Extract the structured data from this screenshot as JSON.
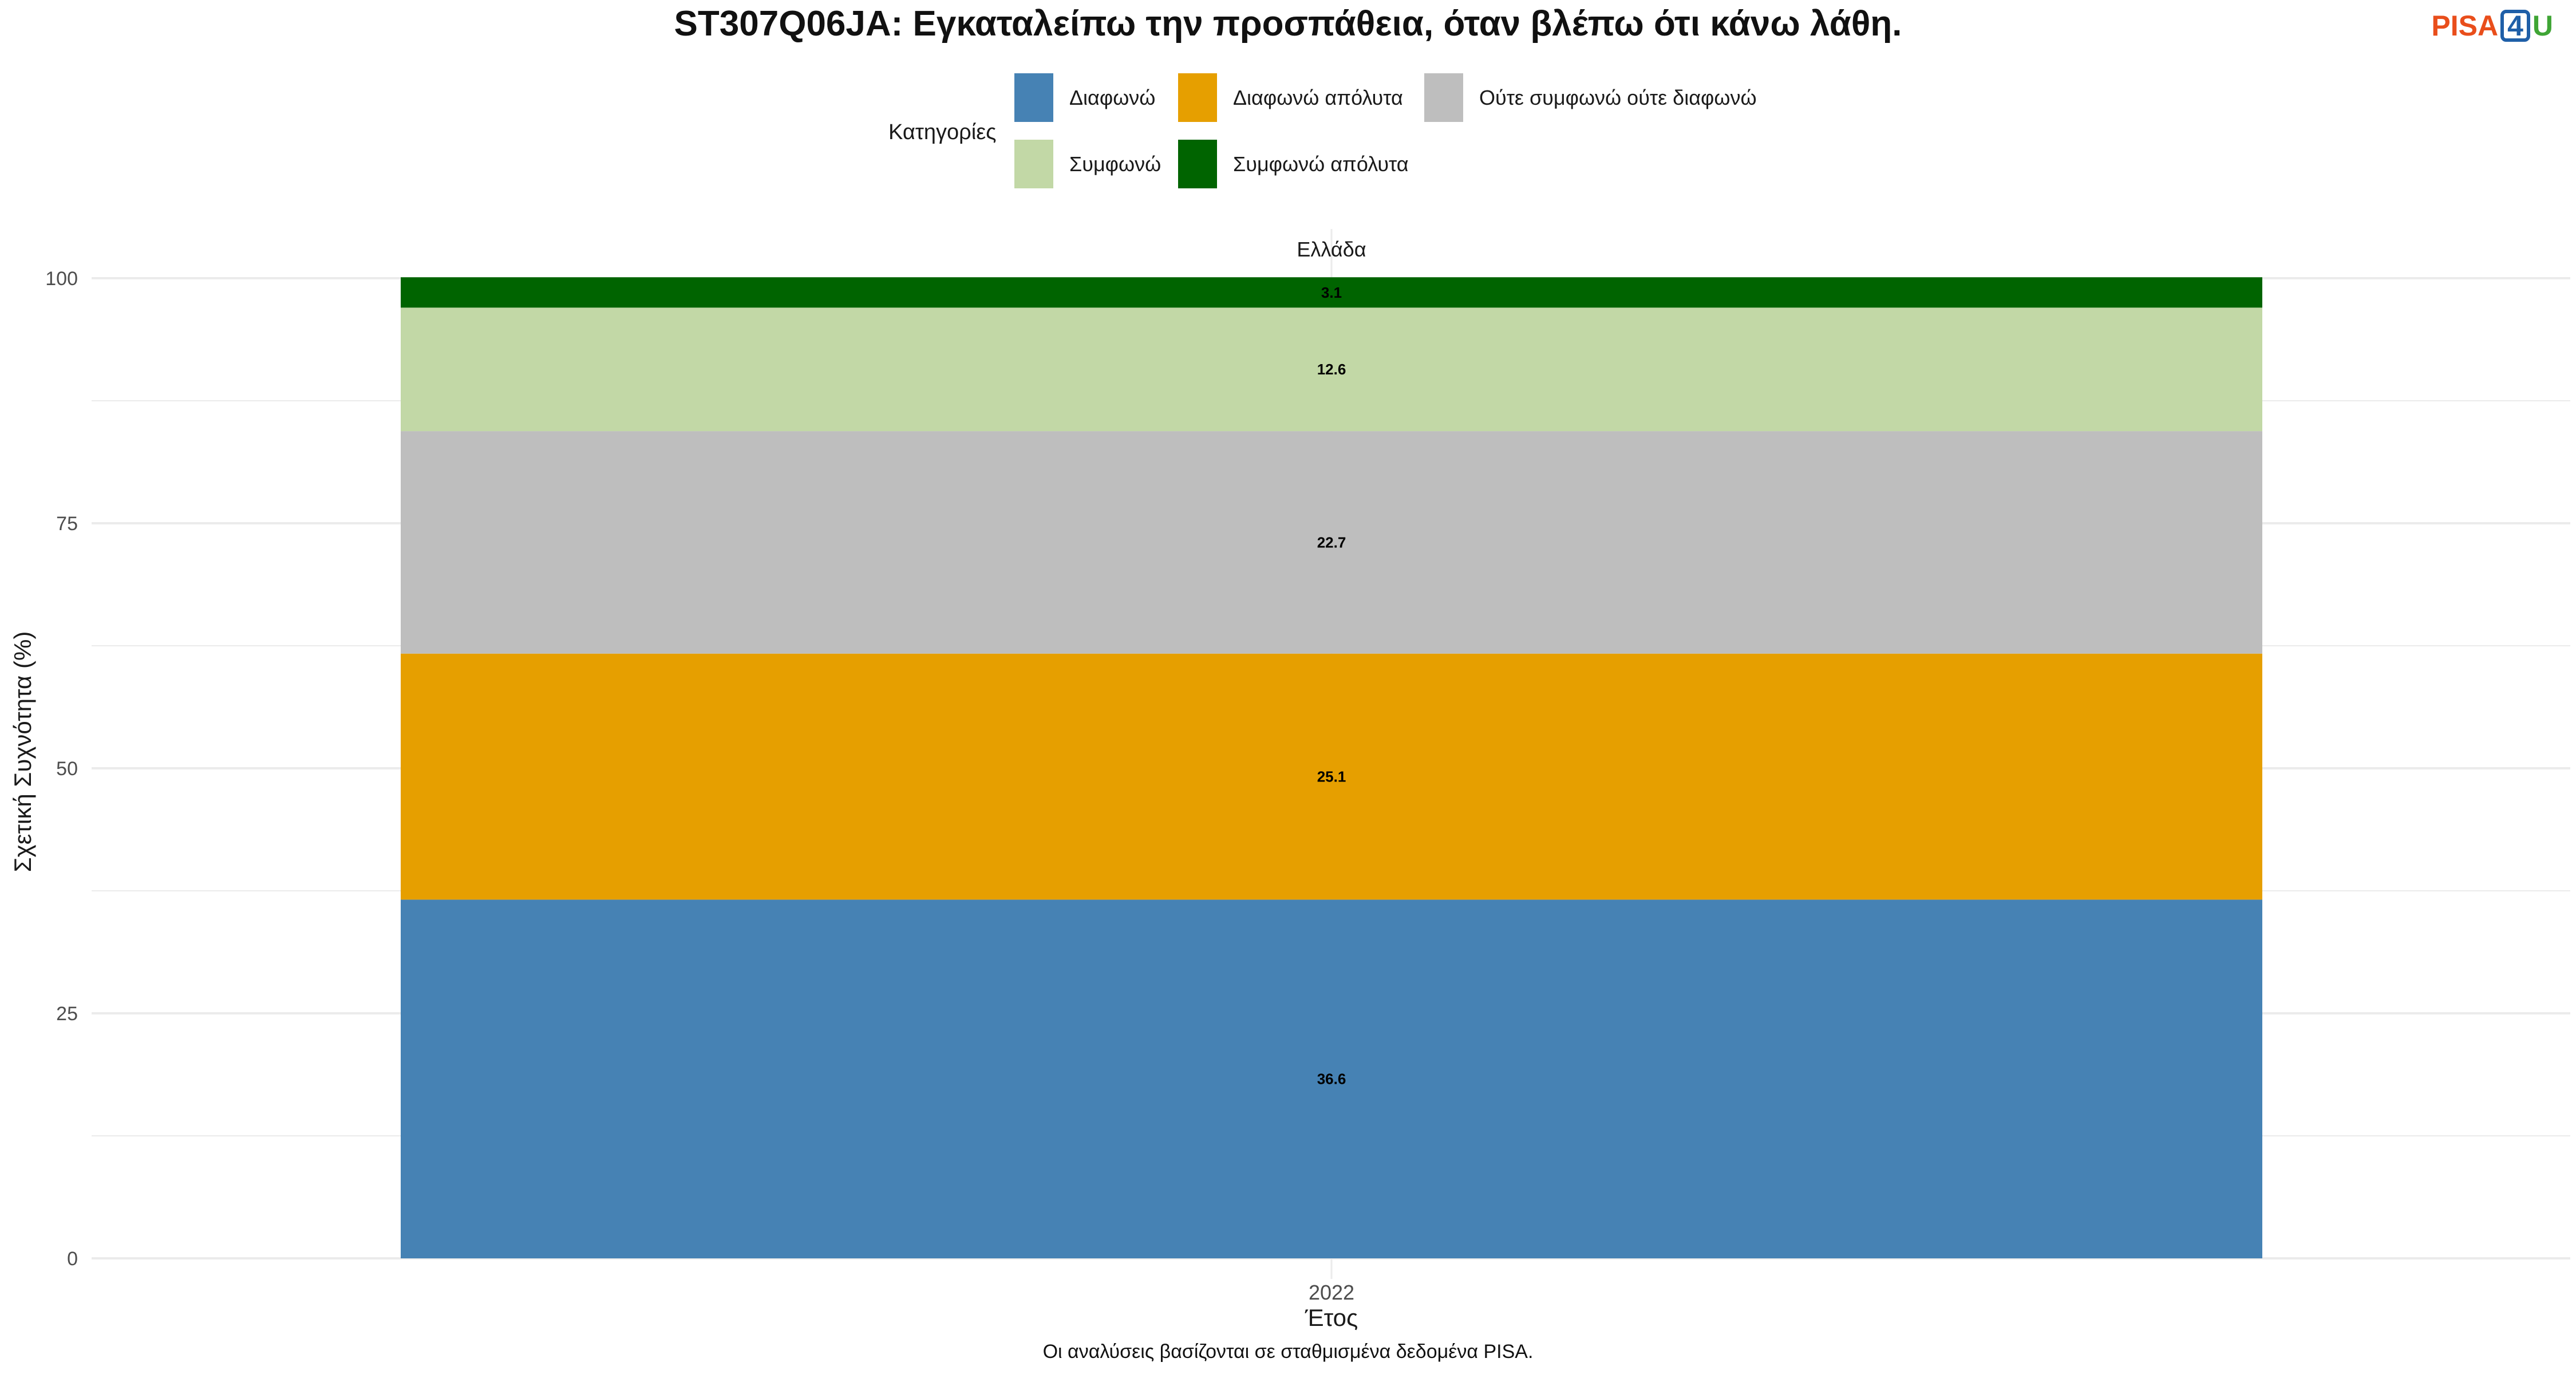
{
  "title": "ST307Q06JA: Εγκαταλείπω την προσπάθεια, όταν βλέπω ότι κάνω λάθη.",
  "logo": {
    "part1": "PISA",
    "part2": "4",
    "part3": "U"
  },
  "caption": "Οι αναλύσεις βασίζονται σε σταθμισμένα δεδομένα PISA.",
  "legend": {
    "title": "Κατηγορίες",
    "items": [
      {
        "label": "Διαφωνώ",
        "color": "#4682b4"
      },
      {
        "label": "Διαφωνώ απόλυτα",
        "color": "#e69f00"
      },
      {
        "label": "Ούτε συμφωνώ ούτε διαφωνώ",
        "color": "#bebebe"
      },
      {
        "label": "Συμφωνώ",
        "color": "#c2d8a6"
      },
      {
        "label": "Συμφωνώ απόλυτα",
        "color": "#006400"
      }
    ]
  },
  "chart_data": {
    "type": "bar",
    "stacked": true,
    "facet": "Ελλάδα",
    "categories": [
      "2022"
    ],
    "xlabel": "Έτος",
    "ylabel": "Σχετική Συχνότητα (%)",
    "ylim": [
      0,
      100
    ],
    "yticks": [
      0,
      25,
      50,
      75,
      100
    ],
    "grid": true,
    "legend_position": "top",
    "series": [
      {
        "name": "Διαφωνώ",
        "color": "#4682b4",
        "values": [
          36.6
        ]
      },
      {
        "name": "Διαφωνώ απόλυτα",
        "color": "#e69f00",
        "values": [
          25.1
        ]
      },
      {
        "name": "Ούτε συμφωνώ ούτε διαφωνώ",
        "color": "#bebebe",
        "values": [
          22.7
        ]
      },
      {
        "name": "Συμφωνώ",
        "color": "#c2d8a6",
        "values": [
          12.6
        ]
      },
      {
        "name": "Συμφωνώ απόλυτα",
        "color": "#006400",
        "values": [
          3.1
        ]
      }
    ]
  }
}
